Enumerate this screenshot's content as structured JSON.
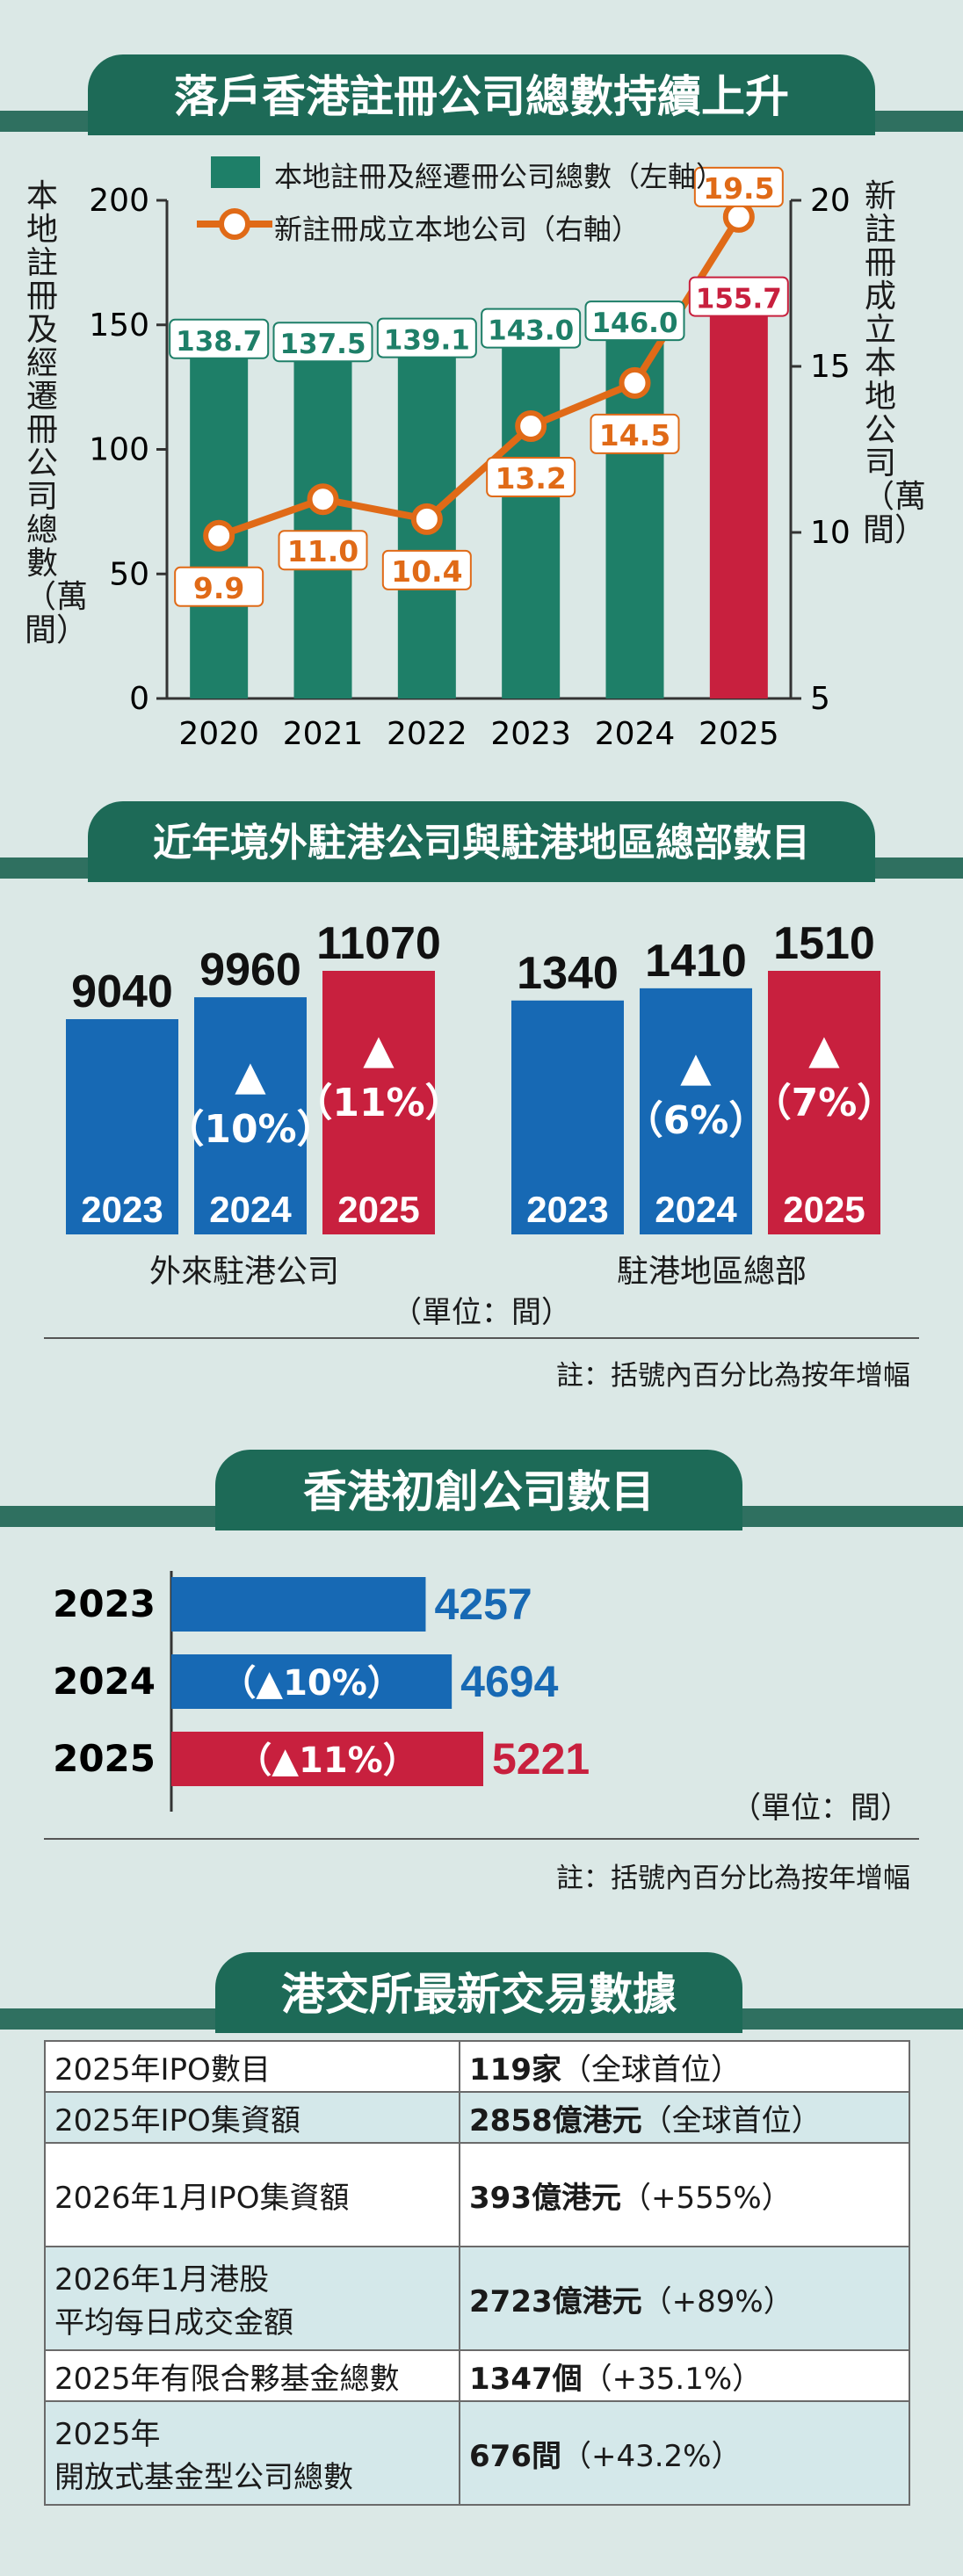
{
  "colors": {
    "green": "#1e7f68",
    "orange": "#e06a17",
    "red": "#c8203e",
    "blue": "#1769b4",
    "title": "#1d6a57"
  },
  "s1": {
    "title": "落戶香港註冊公司總數持續上升",
    "legend_bar": "本地註冊及經遷冊公司總數（左軸）",
    "legend_line": "新註冊成立本地公司（右軸）",
    "left_axis_label": "本地註冊及經遷冊公司總數（萬間）",
    "right_axis_label": "新註冊成立本地公司（萬間）"
  },
  "s2": {
    "title": "近年境外駐港公司與駐港地區總部數目",
    "group1_label": "外來駐港公司",
    "group2_label": "駐港地區總部",
    "unit": "（單位：間）",
    "note": "註：括號內百分比為按年增幅"
  },
  "s3": {
    "title": "香港初創公司數目",
    "unit": "（單位：間）",
    "note": "註：括號內百分比為按年增幅"
  },
  "s4": {
    "title": "港交所最新交易數據",
    "rows": [
      {
        "label": "2025年IPO數目",
        "label2": "",
        "value": "119家",
        "extra": "（全球首位）"
      },
      {
        "label": "2025年IPO集資額",
        "label2": "",
        "value": "2858億港元",
        "extra": "（全球首位）"
      },
      {
        "label": "2026年1月IPO集資額",
        "label2": "",
        "value": "393億港元",
        "extra": "（+555%）"
      },
      {
        "label": "2026年1月港股",
        "label2": "平均每日成交金額",
        "value": "2723億港元",
        "extra": "（+89%）"
      },
      {
        "label": "2025年有限合夥基金總數",
        "label2": "",
        "value": "1347個",
        "extra": "（+35.1%）"
      },
      {
        "label": "2025年",
        "label2": "開放式基金型公司總數",
        "value": "676間",
        "extra": "（+43.2%）"
      }
    ]
  },
  "chart_data": [
    {
      "type": "bar+line",
      "categories": [
        "2020",
        "2021",
        "2022",
        "2023",
        "2024",
        "2025"
      ],
      "series": [
        {
          "name": "本地註冊及經遷冊公司總數（左軸）",
          "kind": "bar",
          "axis": "left",
          "values": [
            138.7,
            137.5,
            139.1,
            143.0,
            146.0,
            155.7
          ],
          "labels": [
            "138.7",
            "137.5",
            "139.1",
            "143.0",
            "146.0",
            "155.7"
          ]
        },
        {
          "name": "新註冊成立本地公司（右軸）",
          "kind": "line",
          "axis": "right",
          "values": [
            9.9,
            11.0,
            10.4,
            13.2,
            14.5,
            19.5
          ],
          "labels": [
            "9.9",
            "11.0",
            "10.4",
            "13.2",
            "14.5",
            "19.5"
          ]
        }
      ],
      "left_ticks": [
        "0",
        "50",
        "100",
        "150",
        "200"
      ],
      "ylim_left": [
        0,
        200
      ],
      "right_ticks": [
        "5",
        "10",
        "15",
        "20"
      ],
      "ylim_right": [
        5,
        20
      ]
    },
    {
      "type": "bar",
      "groups": [
        {
          "name": "外來駐港公司",
          "categories": [
            "2023",
            "2024",
            "2025"
          ],
          "values": [
            9040,
            9960,
            11070
          ],
          "labels": [
            "9040",
            "9960",
            "11070"
          ],
          "changes": [
            "",
            "▲（10%）",
            "▲（11%）"
          ]
        },
        {
          "name": "駐港地區總部",
          "categories": [
            "2023",
            "2024",
            "2025"
          ],
          "values": [
            1340,
            1410,
            1510
          ],
          "labels": [
            "1340",
            "1410",
            "1510"
          ],
          "changes": [
            "",
            "▲（6%）",
            "▲（7%）"
          ]
        }
      ]
    },
    {
      "type": "bar",
      "orientation": "horizontal",
      "categories": [
        "2023",
        "2024",
        "2025"
      ],
      "values": [
        4257,
        4694,
        5221
      ],
      "labels": [
        "4257",
        "4694",
        "5221"
      ],
      "changes": [
        "",
        "（▲10%）",
        "（▲11%）"
      ]
    }
  ]
}
